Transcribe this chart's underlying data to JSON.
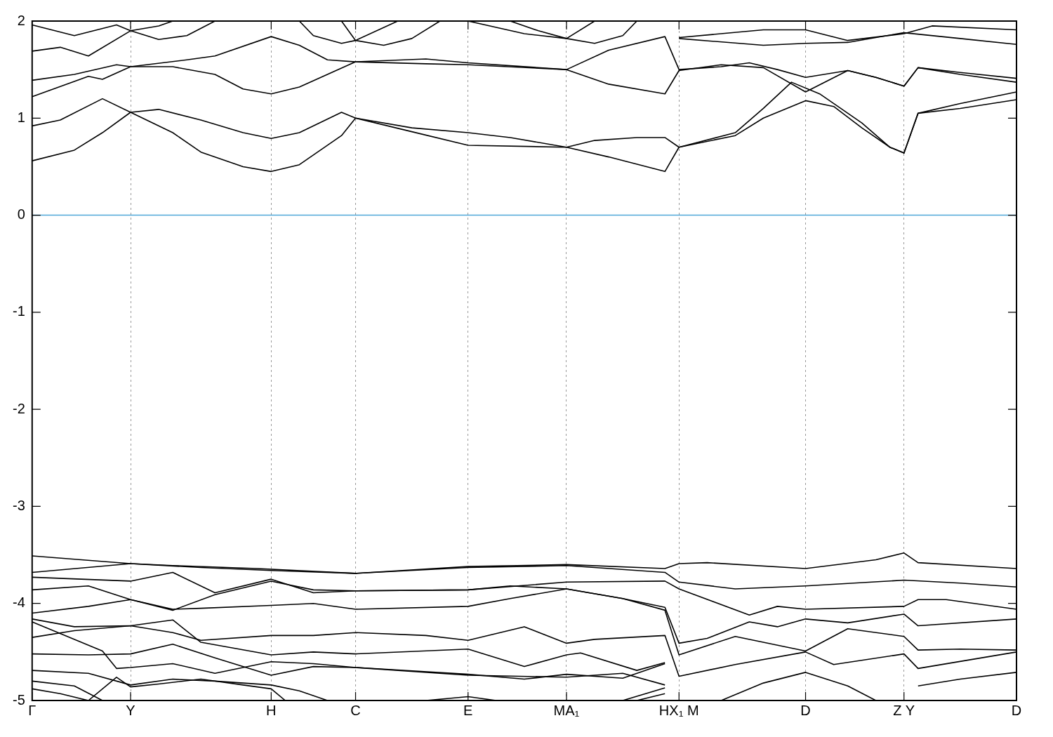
{
  "chart_data": {
    "type": "line",
    "ylim": [
      -5,
      2
    ],
    "categories": [
      "Γ",
      null,
      null,
      null,
      null,
      null,
      null,
      "Y",
      null,
      null,
      null,
      null,
      null,
      null,
      null,
      null,
      null,
      "H",
      null,
      null,
      null,
      null,
      null,
      "C",
      null,
      null,
      null,
      null,
      null,
      null,
      null,
      "E",
      null,
      null,
      null,
      null,
      null,
      null,
      "MA₁",
      null,
      null,
      null,
      null,
      null,
      null,
      null,
      "HX₁ M",
      null,
      null,
      null,
      null,
      null,
      null,
      null,
      null,
      "D",
      null,
      null,
      null,
      null,
      null,
      null,
      "Z Y",
      null,
      null,
      null,
      null,
      null,
      null,
      null,
      "D"
    ],
    "yticks": [
      -5,
      -4,
      -3,
      -2,
      -1,
      0,
      1,
      2
    ],
    "grid": "x",
    "legend": false,
    "ref_lines": [
      {
        "axis": "y",
        "value": 0,
        "color": "#4fa8d8"
      }
    ],
    "series": [
      {
        "color": "#000000",
        "values": [
          0.56,
          null,
          null,
          0.67,
          null,
          0.85,
          null,
          1.06,
          null,
          null,
          0.85,
          null,
          0.65,
          null,
          null,
          0.5,
          null,
          0.45,
          null,
          0.52,
          null,
          null,
          0.82,
          1.0,
          null,
          null,
          null,
          0.86,
          null,
          null,
          null,
          0.72,
          null,
          null,
          null,
          null,
          null,
          null,
          0.7,
          null,
          null,
          0.6,
          null,
          null,
          null,
          0.45,
          0.7,
          null,
          null,
          null,
          0.82,
          null,
          1.0,
          null,
          null,
          1.18,
          null,
          1.12,
          null,
          0.9,
          null,
          0.7,
          0.64,
          1.05,
          null,
          null,
          1.1,
          null,
          null,
          null,
          1.19
        ]
      },
      {
        "color": "#000000",
        "values": [
          0.92,
          null,
          0.98,
          null,
          null,
          1.2,
          null,
          1.06,
          null,
          1.09,
          null,
          null,
          0.98,
          null,
          null,
          0.85,
          null,
          0.79,
          null,
          0.85,
          null,
          null,
          1.06,
          1.0,
          null,
          null,
          null,
          0.9,
          null,
          null,
          null,
          0.85,
          null,
          null,
          0.8,
          null,
          null,
          null,
          0.7,
          null,
          0.77,
          null,
          null,
          0.8,
          null,
          0.8,
          0.7,
          null,
          null,
          null,
          0.85,
          null,
          1.1,
          null,
          1.37,
          null,
          1.25,
          null,
          null,
          0.95,
          null,
          0.7,
          0.64,
          1.05,
          null,
          null,
          1.15,
          null,
          null,
          null,
          1.27
        ]
      },
      {
        "color": "#000000",
        "values": [
          1.22,
          null,
          null,
          null,
          1.43,
          1.4,
          null,
          1.53,
          null,
          null,
          1.53,
          null,
          null,
          1.45,
          null,
          1.3,
          null,
          1.25,
          null,
          1.32,
          null,
          1.45,
          null,
          1.58,
          null,
          null,
          null,
          null,
          1.56,
          null,
          null,
          1.55,
          null,
          null,
          null,
          null,
          null,
          null,
          1.5,
          null,
          null,
          1.35,
          null,
          null,
          null,
          1.25,
          1.49,
          null,
          null,
          1.55,
          null,
          null,
          1.52,
          null,
          null,
          1.27,
          null,
          null,
          1.49,
          null,
          1.42,
          null,
          1.33,
          1.52,
          null,
          null,
          1.45,
          null,
          null,
          null,
          1.37
        ]
      },
      {
        "color": "#000000",
        "values": [
          1.39,
          null,
          null,
          1.45,
          null,
          null,
          1.55,
          1.53,
          null,
          null,
          null,
          1.6,
          null,
          1.64,
          null,
          null,
          null,
          1.84,
          null,
          1.75,
          null,
          1.6,
          null,
          1.58,
          null,
          null,
          null,
          null,
          1.61,
          null,
          null,
          1.57,
          null,
          null,
          null,
          null,
          null,
          null,
          1.5,
          null,
          null,
          1.7,
          null,
          null,
          null,
          1.84,
          1.5,
          null,
          null,
          1.53,
          null,
          1.57,
          null,
          1.5,
          null,
          1.42,
          null,
          null,
          1.49,
          null,
          1.42,
          null,
          1.33,
          1.52,
          null,
          null,
          1.47,
          null,
          null,
          null,
          1.41
        ]
      },
      {
        "color": "#000000",
        "values": [
          1.69,
          null,
          1.73,
          null,
          1.64,
          null,
          null,
          1.9,
          null,
          1.95,
          2.0,
          null,
          null,
          null,
          null,
          null,
          null,
          null,
          null,
          null,
          null,
          null,
          null,
          null,
          null,
          null,
          null,
          null,
          null,
          null,
          null,
          null,
          null,
          null,
          null,
          null,
          null,
          null,
          null,
          null,
          null,
          null,
          null,
          null,
          null,
          null,
          null,
          null,
          null,
          null,
          null,
          null,
          null,
          null,
          null,
          null,
          null,
          null,
          null,
          null,
          null,
          null,
          null,
          null,
          null,
          null,
          null,
          null,
          null,
          null,
          null
        ]
      },
      {
        "color": "#000000",
        "values": [
          1.96,
          null,
          null,
          1.85,
          null,
          null,
          1.96,
          1.9,
          null,
          1.81,
          null,
          1.85,
          null,
          2.0,
          null,
          null,
          null,
          null,
          null,
          null,
          null,
          null,
          null,
          null,
          null,
          null,
          null,
          null,
          null,
          null,
          null,
          null,
          null,
          null,
          null,
          null,
          null,
          null,
          null,
          null,
          null,
          null,
          null,
          null,
          null,
          null,
          null,
          null,
          null,
          null,
          null,
          null,
          null,
          null,
          null,
          null,
          null,
          null,
          null,
          null,
          null,
          null,
          null,
          null,
          null,
          null,
          null,
          null,
          null,
          null,
          null
        ]
      },
      {
        "color": "#000000",
        "values": [
          null,
          null,
          null,
          null,
          null,
          null,
          null,
          null,
          null,
          null,
          null,
          null,
          null,
          null,
          null,
          null,
          null,
          null,
          null,
          2.0,
          1.85,
          null,
          1.77,
          1.8,
          null,
          null,
          2.0,
          null,
          null,
          null,
          null,
          null,
          null,
          null,
          null,
          null,
          null,
          null,
          null,
          null,
          null,
          null,
          null,
          null,
          null,
          null,
          null,
          null,
          null,
          null,
          null,
          null,
          null,
          null,
          null,
          null,
          null,
          null,
          null,
          null,
          null,
          null,
          null,
          null,
          null,
          null,
          null,
          null,
          null,
          null,
          null
        ]
      },
      {
        "color": "#000000",
        "values": [
          null,
          null,
          null,
          null,
          null,
          null,
          null,
          null,
          null,
          null,
          null,
          null,
          null,
          null,
          null,
          null,
          null,
          null,
          null,
          null,
          null,
          null,
          2.0,
          1.8,
          null,
          1.75,
          null,
          1.82,
          null,
          2.0,
          null,
          null,
          null,
          null,
          null,
          null,
          null,
          null,
          null,
          null,
          null,
          null,
          null,
          null,
          null,
          null,
          null,
          null,
          null,
          null,
          null,
          null,
          null,
          null,
          null,
          null,
          null,
          null,
          null,
          null,
          null,
          null,
          null,
          null,
          null,
          null,
          null,
          null,
          null,
          null,
          null
        ]
      },
      {
        "color": "#000000",
        "values": [
          null,
          null,
          null,
          null,
          null,
          null,
          null,
          null,
          null,
          null,
          null,
          null,
          null,
          null,
          null,
          null,
          null,
          null,
          null,
          null,
          null,
          null,
          null,
          null,
          null,
          null,
          null,
          null,
          null,
          null,
          null,
          2.0,
          null,
          null,
          null,
          1.87,
          null,
          null,
          1.82,
          null,
          1.77,
          null,
          1.85,
          2.0,
          null,
          null,
          null,
          null,
          null,
          null,
          null,
          null,
          null,
          null,
          null,
          null,
          null,
          null,
          null,
          null,
          null,
          null,
          null,
          null,
          null,
          null,
          null,
          null,
          null,
          null,
          null
        ]
      },
      {
        "color": "#000000",
        "values": [
          null,
          null,
          null,
          null,
          null,
          null,
          null,
          null,
          null,
          null,
          null,
          null,
          null,
          null,
          null,
          null,
          null,
          null,
          null,
          null,
          null,
          null,
          null,
          null,
          null,
          null,
          null,
          null,
          null,
          null,
          null,
          null,
          null,
          null,
          2.0,
          null,
          1.9,
          null,
          1.82,
          null,
          2.0,
          null,
          null,
          null,
          null,
          null,
          null,
          null,
          null,
          null,
          null,
          null,
          null,
          null,
          null,
          null,
          null,
          null,
          null,
          null,
          null,
          null,
          null,
          null,
          null,
          null,
          null,
          null,
          null,
          null,
          null
        ]
      },
      {
        "color": "#000000",
        "values": [
          null,
          null,
          null,
          null,
          null,
          null,
          null,
          null,
          null,
          null,
          null,
          null,
          null,
          null,
          null,
          null,
          null,
          null,
          null,
          null,
          null,
          null,
          null,
          null,
          null,
          null,
          null,
          null,
          null,
          null,
          null,
          null,
          null,
          null,
          null,
          null,
          null,
          null,
          null,
          null,
          null,
          null,
          null,
          null,
          null,
          null,
          1.83,
          null,
          null,
          null,
          null,
          null,
          1.91,
          null,
          null,
          1.91,
          null,
          null,
          1.8,
          null,
          null,
          null,
          1.87,
          null,
          1.95,
          null,
          null,
          null,
          null,
          null,
          1.91
        ]
      },
      {
        "color": "#000000",
        "values": [
          null,
          null,
          null,
          null,
          null,
          null,
          null,
          null,
          null,
          null,
          null,
          null,
          null,
          null,
          null,
          null,
          null,
          null,
          null,
          null,
          null,
          null,
          null,
          null,
          null,
          null,
          null,
          null,
          null,
          null,
          null,
          null,
          null,
          null,
          null,
          null,
          null,
          null,
          null,
          null,
          null,
          null,
          null,
          null,
          null,
          null,
          1.82,
          null,
          null,
          null,
          null,
          null,
          1.75,
          null,
          null,
          1.77,
          null,
          null,
          1.78,
          null,
          null,
          null,
          1.88,
          null,
          null,
          null,
          1.82,
          null,
          null,
          null,
          1.76
        ]
      },
      {
        "color": "#000000",
        "values": [
          -3.51,
          null,
          null,
          null,
          null,
          null,
          null,
          -3.59,
          null,
          null,
          -3.61,
          null,
          null,
          null,
          null,
          null,
          -3.64,
          null,
          null,
          null,
          null,
          null,
          null,
          -3.69,
          null,
          null,
          null,
          null,
          null,
          null,
          null,
          -3.62,
          null,
          null,
          null,
          null,
          null,
          null,
          -3.6,
          null,
          null,
          null,
          null,
          null,
          null,
          -3.64,
          -3.59,
          null,
          -3.58,
          null,
          null,
          null,
          null,
          null,
          null,
          -3.64,
          null,
          null,
          null,
          null,
          -3.55,
          null,
          -3.48,
          -3.58,
          null,
          null,
          null,
          null,
          null,
          null,
          -3.64
        ]
      },
      {
        "color": "#000000",
        "values": [
          -3.68,
          null,
          null,
          null,
          null,
          null,
          null,
          -3.59,
          null,
          null,
          null,
          null,
          -3.63,
          null,
          null,
          null,
          null,
          -3.66,
          null,
          null,
          null,
          null,
          null,
          -3.69,
          null,
          null,
          null,
          null,
          null,
          null,
          null,
          -3.63,
          null,
          null,
          null,
          null,
          null,
          null,
          -3.61,
          null,
          null,
          null,
          null,
          null,
          null,
          -3.68,
          -3.78,
          null,
          null,
          null,
          -3.85,
          null,
          null,
          null,
          null,
          -3.82,
          null,
          null,
          null,
          null,
          null,
          null,
          -3.76,
          null,
          null,
          null,
          -3.79,
          null,
          null,
          null,
          -3.83
        ]
      },
      {
        "color": "#000000",
        "values": [
          -3.73,
          null,
          null,
          null,
          null,
          null,
          null,
          -3.77,
          null,
          null,
          -3.68,
          null,
          null,
          -3.89,
          null,
          null,
          null,
          -3.75,
          null,
          null,
          -3.89,
          null,
          null,
          -3.87,
          null,
          null,
          null,
          null,
          null,
          null,
          null,
          -3.86,
          null,
          null,
          null,
          null,
          null,
          null,
          -3.78,
          null,
          null,
          null,
          null,
          null,
          null,
          -3.77,
          -3.85,
          null,
          null,
          null,
          null,
          -4.12,
          null,
          -4.03,
          null,
          -4.06,
          null,
          null,
          null,
          null,
          null,
          null,
          -4.03,
          -3.96,
          null,
          -3.96,
          null,
          null,
          null,
          null,
          -4.06
        ]
      },
      {
        "color": "#000000",
        "values": [
          -3.86,
          null,
          null,
          null,
          -3.82,
          null,
          null,
          -3.96,
          null,
          null,
          -4.07,
          null,
          null,
          -3.91,
          null,
          null,
          null,
          -3.77,
          null,
          null,
          -3.86,
          null,
          null,
          -3.87,
          null,
          null,
          null,
          null,
          null,
          null,
          null,
          -3.86,
          null,
          null,
          -3.82,
          null,
          null,
          null,
          -3.85,
          null,
          null,
          null,
          -3.95,
          null,
          null,
          -4.04,
          -4.41,
          null,
          -4.36,
          null,
          null,
          -4.19,
          null,
          -4.24,
          null,
          -4.16,
          null,
          null,
          -4.2,
          null,
          null,
          null,
          -4.11,
          -4.23,
          null,
          null,
          null,
          null,
          null,
          null,
          -4.16
        ]
      },
      {
        "color": "#000000",
        "values": [
          -4.1,
          null,
          null,
          null,
          -4.03,
          null,
          null,
          -3.96,
          null,
          null,
          -4.06,
          null,
          -4.05,
          null,
          null,
          null,
          null,
          -4.02,
          null,
          null,
          -4.0,
          null,
          null,
          -4.06,
          null,
          null,
          null,
          null,
          null,
          null,
          null,
          -4.03,
          null,
          null,
          -3.95,
          null,
          null,
          null,
          -3.85,
          null,
          null,
          null,
          -3.95,
          null,
          null,
          -4.07,
          -4.53,
          null,
          null,
          null,
          -4.34,
          null,
          null,
          null,
          null,
          -4.49,
          null,
          null,
          -4.26,
          null,
          null,
          null,
          -4.34,
          -4.48,
          null,
          null,
          -4.47,
          null,
          null,
          null,
          -4.48
        ]
      },
      {
        "color": "#000000",
        "values": [
          -4.16,
          null,
          null,
          -4.24,
          null,
          null,
          null,
          -4.23,
          null,
          null,
          -4.3,
          null,
          -4.38,
          null,
          null,
          null,
          null,
          -4.33,
          null,
          null,
          -4.33,
          null,
          null,
          -4.3,
          null,
          null,
          null,
          null,
          -4.33,
          null,
          null,
          -4.38,
          null,
          null,
          null,
          -4.24,
          null,
          null,
          -4.41,
          null,
          -4.37,
          null,
          null,
          null,
          null,
          -4.33,
          -4.75,
          null,
          null,
          null,
          -4.63,
          null,
          null,
          null,
          null,
          -4.5,
          null,
          -4.63,
          null,
          null,
          null,
          null,
          -4.52,
          -4.67,
          null,
          null,
          null,
          null,
          null,
          null,
          -4.5
        ]
      },
      {
        "color": "#000000",
        "values": [
          -4.19,
          null,
          null,
          null,
          null,
          -4.49,
          -4.67,
          -4.66,
          null,
          null,
          -4.62,
          null,
          null,
          -4.72,
          null,
          null,
          null,
          -4.6,
          null,
          null,
          -4.62,
          null,
          null,
          -4.66,
          null,
          null,
          null,
          null,
          null,
          null,
          null,
          -4.73,
          null,
          null,
          null,
          -4.78,
          null,
          null,
          -4.73,
          null,
          null,
          null,
          -4.77,
          null,
          null,
          -4.62,
          null,
          null,
          null,
          null,
          null,
          null,
          null,
          null,
          null,
          null,
          null,
          null,
          null,
          null,
          null,
          null,
          null,
          null,
          null,
          null,
          null,
          null,
          null,
          null,
          null
        ]
      },
      {
        "color": "#000000",
        "values": [
          -4.35,
          null,
          null,
          -4.28,
          null,
          null,
          null,
          -4.23,
          null,
          null,
          -4.17,
          null,
          -4.4,
          null,
          null,
          null,
          null,
          -4.53,
          null,
          null,
          -4.5,
          null,
          null,
          -4.52,
          null,
          null,
          null,
          null,
          null,
          null,
          null,
          -4.47,
          null,
          null,
          null,
          -4.65,
          null,
          null,
          -4.53,
          -4.51,
          null,
          null,
          null,
          -4.69,
          null,
          -4.61,
          null,
          null,
          null,
          null,
          null,
          null,
          null,
          null,
          null,
          null,
          null,
          null,
          null,
          null,
          null,
          null,
          null,
          null,
          null,
          null,
          null,
          null,
          null,
          null,
          null
        ]
      },
      {
        "color": "#000000",
        "values": [
          -4.52,
          null,
          null,
          null,
          -4.53,
          null,
          null,
          -4.52,
          null,
          null,
          -4.42,
          null,
          null,
          -4.56,
          null,
          null,
          null,
          -4.74,
          null,
          null,
          -4.65,
          null,
          null,
          -4.66,
          null,
          null,
          null,
          null,
          null,
          null,
          null,
          -4.74,
          null,
          null,
          null,
          null,
          null,
          null,
          -4.76,
          null,
          null,
          null,
          -4.72,
          null,
          null,
          -4.84,
          null,
          null,
          null,
          null,
          null,
          null,
          null,
          null,
          null,
          null,
          null,
          null,
          null,
          null,
          null,
          null,
          null,
          null,
          null,
          null,
          null,
          null,
          null,
          null,
          null
        ]
      },
      {
        "color": "#000000",
        "values": [
          -4.69,
          null,
          null,
          null,
          -4.72,
          null,
          null,
          -4.84,
          null,
          null,
          -4.78,
          null,
          null,
          -4.8,
          null,
          null,
          null,
          -4.84,
          null,
          -4.9,
          null,
          -5.0,
          null,
          null,
          null,
          null,
          null,
          null,
          null,
          null,
          null,
          null,
          null,
          null,
          null,
          null,
          null,
          null,
          null,
          null,
          null,
          null,
          null,
          null,
          null,
          null,
          null,
          null,
          null,
          null,
          null,
          null,
          null,
          null,
          null,
          null,
          null,
          null,
          null,
          null,
          null,
          null,
          null,
          null,
          null,
          null,
          null,
          null,
          null,
          null,
          null
        ]
      },
      {
        "color": "#000000",
        "values": [
          -4.8,
          null,
          null,
          -4.85,
          null,
          -5.0,
          null,
          null,
          null,
          null,
          null,
          null,
          null,
          null,
          null,
          null,
          null,
          null,
          null,
          null,
          null,
          null,
          null,
          null,
          null,
          null,
          null,
          null,
          null,
          null,
          null,
          null,
          null,
          null,
          null,
          null,
          null,
          null,
          null,
          null,
          null,
          null,
          null,
          null,
          null,
          null,
          null,
          null,
          null,
          null,
          null,
          null,
          null,
          null,
          null,
          null,
          null,
          null,
          null,
          null,
          null,
          null,
          null,
          null,
          null,
          null,
          null,
          null,
          null,
          null,
          null
        ]
      },
      {
        "color": "#000000",
        "values": [
          -4.88,
          null,
          -4.93,
          null,
          -5.0,
          null,
          null,
          null,
          null,
          null,
          null,
          null,
          null,
          null,
          null,
          null,
          null,
          null,
          null,
          null,
          null,
          null,
          null,
          null,
          null,
          null,
          null,
          null,
          null,
          null,
          null,
          null,
          null,
          null,
          null,
          null,
          null,
          null,
          null,
          null,
          null,
          null,
          null,
          null,
          null,
          null,
          null,
          null,
          null,
          null,
          null,
          null,
          null,
          null,
          null,
          null,
          null,
          null,
          null,
          null,
          null,
          null,
          null,
          null,
          null,
          null,
          null,
          null,
          null,
          null,
          null
        ]
      },
      {
        "color": "#000000",
        "values": [
          null,
          null,
          null,
          null,
          -5.0,
          null,
          -4.76,
          -4.86,
          null,
          -4.83,
          null,
          null,
          -4.78,
          null,
          null,
          -4.84,
          null,
          -4.88,
          -5.0,
          null,
          null,
          null,
          null,
          null,
          null,
          null,
          null,
          null,
          null,
          null,
          null,
          null,
          null,
          null,
          null,
          null,
          null,
          null,
          null,
          null,
          null,
          null,
          null,
          null,
          null,
          null,
          null,
          null,
          null,
          null,
          null,
          null,
          null,
          null,
          null,
          null,
          null,
          null,
          null,
          null,
          null,
          null,
          null,
          null,
          null,
          null,
          null,
          null,
          null,
          null,
          null
        ]
      },
      {
        "color": "#000000",
        "values": [
          null,
          null,
          null,
          null,
          null,
          null,
          null,
          null,
          null,
          null,
          null,
          null,
          null,
          null,
          null,
          null,
          null,
          null,
          null,
          null,
          null,
          null,
          null,
          null,
          null,
          null,
          null,
          null,
          -5.0,
          null,
          null,
          -4.96,
          null,
          -5.0,
          null,
          null,
          null,
          null,
          null,
          null,
          null,
          null,
          null,
          null,
          null,
          null,
          null,
          null,
          null,
          null,
          null,
          null,
          null,
          null,
          null,
          null,
          null,
          null,
          null,
          null,
          null,
          null,
          null,
          null,
          null,
          null,
          null,
          null,
          null,
          null,
          null
        ]
      },
      {
        "color": "#000000",
        "values": [
          null,
          null,
          null,
          null,
          null,
          null,
          null,
          null,
          null,
          null,
          null,
          null,
          null,
          null,
          null,
          null,
          null,
          null,
          null,
          null,
          null,
          null,
          null,
          null,
          null,
          null,
          null,
          null,
          null,
          null,
          null,
          null,
          null,
          null,
          null,
          null,
          null,
          null,
          null,
          null,
          null,
          null,
          -5.0,
          null,
          null,
          -4.87,
          null,
          null,
          null,
          null,
          null,
          null,
          null,
          null,
          null,
          null,
          null,
          null,
          null,
          null,
          null,
          null,
          null,
          null,
          null,
          null,
          null,
          null,
          null,
          null,
          null
        ]
      },
      {
        "color": "#000000",
        "values": [
          null,
          null,
          null,
          null,
          null,
          null,
          null,
          null,
          null,
          null,
          null,
          null,
          null,
          null,
          null,
          null,
          null,
          null,
          null,
          null,
          null,
          null,
          null,
          null,
          null,
          null,
          null,
          null,
          null,
          null,
          null,
          null,
          null,
          null,
          null,
          null,
          null,
          null,
          null,
          null,
          null,
          null,
          null,
          -5.0,
          null,
          -4.93,
          null,
          null,
          null,
          null,
          null,
          null,
          null,
          null,
          null,
          null,
          null,
          null,
          null,
          null,
          null,
          null,
          null,
          null,
          null,
          null,
          null,
          null,
          null,
          null,
          null
        ]
      },
      {
        "color": "#000000",
        "values": [
          null,
          null,
          null,
          null,
          null,
          null,
          null,
          null,
          null,
          null,
          null,
          null,
          null,
          null,
          null,
          null,
          null,
          null,
          null,
          null,
          null,
          null,
          null,
          null,
          null,
          null,
          null,
          null,
          null,
          null,
          null,
          null,
          null,
          null,
          null,
          null,
          null,
          null,
          null,
          null,
          null,
          null,
          null,
          null,
          null,
          null,
          null,
          null,
          null,
          -5.0,
          null,
          null,
          -4.82,
          null,
          null,
          -4.71,
          null,
          null,
          -4.85,
          null,
          -5.0,
          null,
          null,
          null,
          null,
          null,
          null,
          null,
          null,
          null,
          null
        ]
      },
      {
        "color": "#000000",
        "values": [
          null,
          null,
          null,
          null,
          null,
          null,
          null,
          null,
          null,
          null,
          null,
          null,
          null,
          null,
          null,
          null,
          null,
          null,
          null,
          null,
          null,
          null,
          null,
          null,
          null,
          null,
          null,
          null,
          null,
          null,
          null,
          null,
          null,
          null,
          null,
          null,
          null,
          null,
          null,
          null,
          null,
          null,
          null,
          null,
          null,
          null,
          null,
          null,
          null,
          null,
          null,
          null,
          null,
          null,
          null,
          null,
          null,
          null,
          null,
          null,
          null,
          null,
          null,
          -4.85,
          null,
          null,
          -4.78,
          null,
          null,
          null,
          -4.71
        ]
      }
    ]
  }
}
